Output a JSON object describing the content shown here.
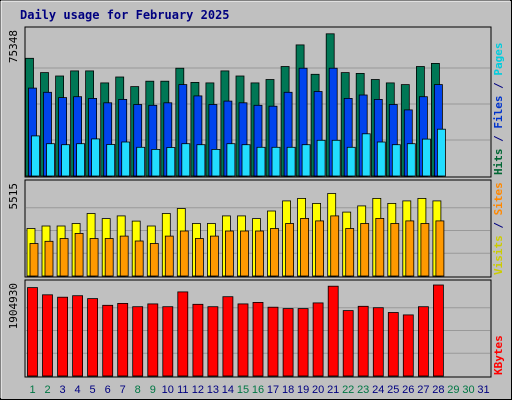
{
  "chart_data": {
    "type": "bar",
    "title": "Daily usage for February 2025",
    "categories": [
      "1",
      "2",
      "3",
      "4",
      "5",
      "6",
      "7",
      "8",
      "9",
      "10",
      "11",
      "12",
      "13",
      "14",
      "15",
      "16",
      "17",
      "18",
      "19",
      "20",
      "21",
      "22",
      "23",
      "24",
      "25",
      "26",
      "27",
      "28",
      "29",
      "30",
      "31"
    ],
    "weekend_days": [
      "1",
      "2",
      "8",
      "9",
      "15",
      "16",
      "22",
      "23",
      "29",
      "30"
    ],
    "panels": [
      {
        "id": "hits-panel",
        "max_label": "75348",
        "ylim": [
          0,
          75348
        ],
        "side_labels": [
          {
            "text": "Hits",
            "color": "#006633"
          },
          {
            "text": " / ",
            "color": "#000080"
          },
          {
            "text": "Files",
            "color": "#0033cc"
          },
          {
            "text": " / ",
            "color": "#000080"
          },
          {
            "text": "Pages",
            "color": "#00ccdd"
          }
        ],
        "series": [
          {
            "name": "Hits",
            "color": "#007755",
            "values": [
              61600,
              54100,
              52300,
              55000,
              55000,
              48700,
              51800,
              46800,
              49600,
              49600,
              56400,
              49000,
              48700,
              55000,
              52300,
              48700,
              50500,
              57300,
              68600,
              53200,
              74400,
              54100,
              53700,
              50500,
              48700,
              47800,
              57300,
              58900,
              0,
              0,
              0
            ]
          },
          {
            "name": "Files",
            "color": "#0044ee",
            "values": [
              46000,
              43800,
              41000,
              41500,
              40600,
              38300,
              40100,
              37400,
              37000,
              38300,
              47800,
              41900,
              37400,
              39200,
              38300,
              37000,
              36500,
              43800,
              56400,
              44200,
              56400,
              40600,
              42400,
              40100,
              37400,
              34600,
              41500,
              47800,
              0,
              0,
              0
            ]
          },
          {
            "name": "Pages",
            "color": "#22ddff",
            "values": [
              21000,
              16900,
              16400,
              16900,
              19400,
              16500,
              17800,
              15000,
              13900,
              14900,
              16900,
              16400,
              13900,
              16900,
              16400,
              15000,
              15000,
              15000,
              16400,
              18700,
              18700,
              15000,
              22100,
              17800,
              16400,
              16900,
              19300,
              24500,
              0,
              0,
              0
            ]
          }
        ]
      },
      {
        "id": "visits-panel",
        "max_label": "5515",
        "ylim": [
          0,
          5515
        ],
        "side_labels": [
          {
            "text": "Visits",
            "color": "#cccc00"
          },
          {
            "text": " / ",
            "color": "#000080"
          },
          {
            "text": "Sites",
            "color": "#ff8800"
          }
        ],
        "series": [
          {
            "name": "Visits",
            "color": "#ffff00",
            "values": [
              2880,
              3030,
              3030,
              3180,
              3790,
              3480,
              3640,
              3330,
              3030,
              3790,
              4090,
              3180,
              3180,
              3640,
              3640,
              3480,
              3940,
              4550,
              4700,
              4400,
              5000,
              3870,
              4250,
              4700,
              4400,
              4550,
              4700,
              4550,
              0,
              0,
              0
            ]
          },
          {
            "name": "Sites",
            "color": "#ff9900",
            "values": [
              1970,
              2100,
              2270,
              2580,
              2270,
              2270,
              2420,
              2120,
              1970,
              2420,
              2730,
              2270,
              2420,
              2730,
              2730,
              2730,
              2880,
              3180,
              3490,
              3340,
              3640,
              2880,
              3180,
              3490,
              3180,
              3340,
              3180,
              3340,
              0,
              0,
              0
            ]
          }
        ]
      },
      {
        "id": "kbytes-panel",
        "max_label": "1904930",
        "ylim": [
          0,
          1904930
        ],
        "side_labels": [
          {
            "text": "KBytes",
            "color": "#ff0000"
          }
        ],
        "series": [
          {
            "name": "KBytes",
            "color": "#ff0000",
            "values": [
              1850000,
              1700000,
              1650000,
              1680000,
              1620000,
              1480000,
              1520000,
              1450000,
              1510000,
              1450000,
              1760000,
              1500000,
              1450000,
              1660000,
              1510000,
              1540000,
              1440000,
              1410000,
              1410000,
              1530000,
              1880000,
              1370000,
              1460000,
              1430000,
              1330000,
              1280000,
              1450000,
              1904930,
              0,
              0,
              0
            ]
          }
        ]
      }
    ]
  }
}
